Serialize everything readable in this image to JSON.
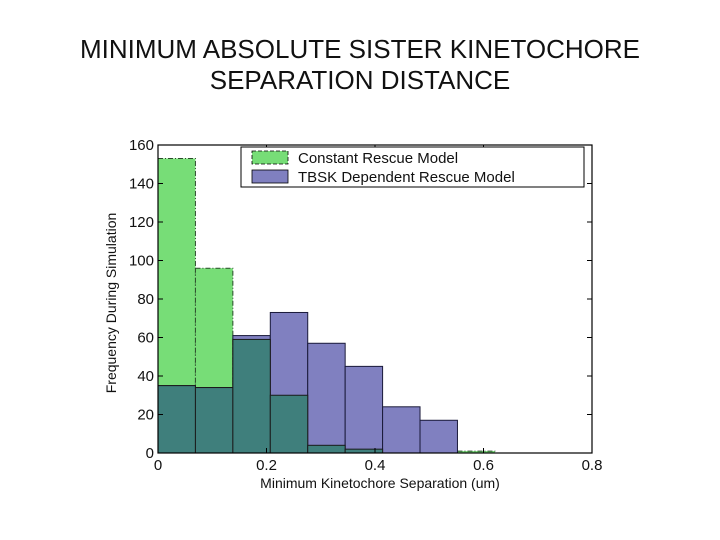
{
  "slide": {
    "title_line1": "MINIMUM ABSOLUTE SISTER KINETOCHORE",
    "title_line2": "SEPARATION DISTANCE"
  },
  "chart_data": {
    "type": "bar",
    "subtype": "overlapping-histogram",
    "xlabel": "Minimum Kinetochore Separation (um)",
    "ylabel": "Frequency During Simulation",
    "xlim": [
      0,
      0.8
    ],
    "ylim": [
      0,
      160
    ],
    "xticks": [
      "0",
      "0.2",
      "0.4",
      "0.6",
      "0.8"
    ],
    "yticks": [
      "0",
      "20",
      "40",
      "60",
      "80",
      "100",
      "120",
      "140",
      "160"
    ],
    "bin_width": 0.069,
    "bin_starts": [
      0,
      0.069,
      0.138,
      0.207,
      0.276,
      0.345,
      0.414,
      0.483,
      0.552,
      0.621
    ],
    "series": [
      {
        "name": "Constant Rescue Model",
        "color": "#77dd77",
        "values": [
          153,
          96,
          59,
          30,
          4,
          2,
          0,
          0,
          1,
          0
        ]
      },
      {
        "name": "TBSK Dependent Rescue Model",
        "color": "#8080c0",
        "values": [
          35,
          34,
          61,
          73,
          57,
          45,
          24,
          17,
          0,
          0
        ]
      }
    ],
    "overlap_color": "#3f7f7c",
    "legend_position": "top-right",
    "grid": false
  }
}
